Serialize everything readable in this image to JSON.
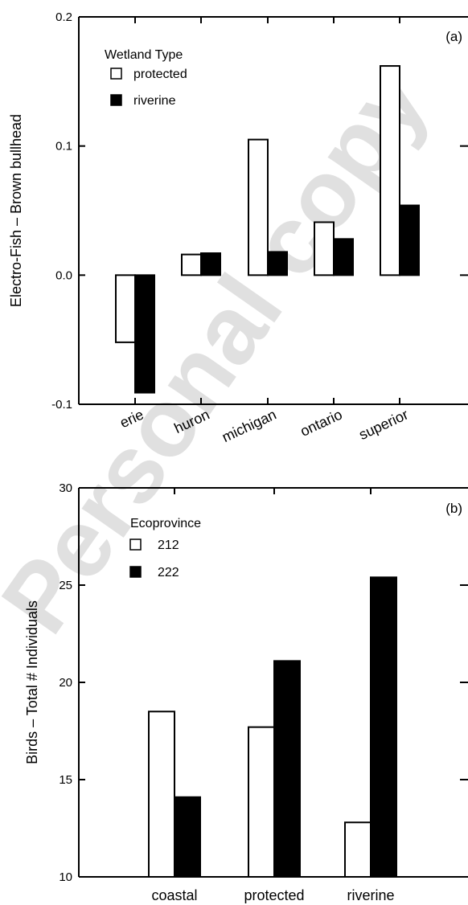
{
  "watermark": "Personal copy",
  "chart_data": [
    {
      "type": "bar",
      "panel_label": "(a)",
      "ylabel": "Electro-Fish – Brown bullhead",
      "xlabel": "",
      "ylim": [
        -0.1,
        0.2
      ],
      "yticks": [
        -0.1,
        0.0,
        0.1,
        0.2
      ],
      "ytick_labels": [
        "-0.1",
        "0.0",
        "0.1",
        "0.2"
      ],
      "categories": [
        "erie",
        "huron",
        "michigan",
        "ontario",
        "superior"
      ],
      "legend": {
        "title": "Wetland Type",
        "position": "top-left"
      },
      "grid": false,
      "series": [
        {
          "name": "protected",
          "color": "#ffffff",
          "values": [
            -0.052,
            0.016,
            0.105,
            0.041,
            0.162
          ]
        },
        {
          "name": "riverine",
          "color": "#000000",
          "values": [
            -0.091,
            0.017,
            0.018,
            0.028,
            0.054
          ]
        }
      ]
    },
    {
      "type": "bar",
      "panel_label": "(b)",
      "ylabel": "Birds – Total # Individuals",
      "xlabel": "",
      "ylim": [
        10,
        30
      ],
      "yticks": [
        10,
        15,
        20,
        25,
        30
      ],
      "ytick_labels": [
        "10",
        "15",
        "20",
        "25",
        "30"
      ],
      "categories": [
        "coastal",
        "protected",
        "riverine"
      ],
      "legend": {
        "title": "Ecoprovince",
        "position": "top-left"
      },
      "grid": false,
      "series": [
        {
          "name": "212",
          "color": "#ffffff",
          "values": [
            18.5,
            17.7,
            12.8
          ]
        },
        {
          "name": "222",
          "color": "#000000",
          "values": [
            14.1,
            21.1,
            25.4
          ]
        }
      ]
    }
  ]
}
